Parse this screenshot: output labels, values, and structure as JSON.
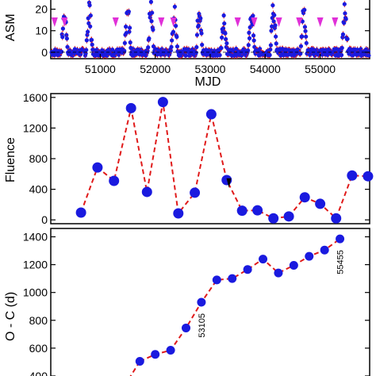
{
  "colors": {
    "marker": "#1a1adf",
    "line": "#e01a1a",
    "triangle": "#e030d8",
    "arrow": "#000000"
  },
  "chart_data": [
    {
      "type": "line",
      "ylabel": "ASM",
      "xlabel": "MJD",
      "xlim": [
        50100,
        55900
      ],
      "ylim": [
        -3,
        25
      ],
      "xticks": [
        51000,
        52000,
        53000,
        54000,
        55000
      ],
      "yticks": [
        0,
        10,
        20
      ],
      "ytick_labels": [
        "0",
        "10",
        "20"
      ],
      "outburst_peaks_mjd": [
        50350,
        50800,
        51500,
        51920,
        52350,
        52800,
        53250,
        53750,
        54150,
        54700,
        55450
      ],
      "outburst_peak_values": [
        25,
        25,
        25,
        25,
        25,
        25,
        18,
        25,
        25,
        25,
        25
      ],
      "triangle_markers_mjd": [
        50170,
        50350,
        51280,
        52110,
        52330,
        53500,
        53800,
        54250,
        54620,
        55000,
        55270
      ]
    },
    {
      "type": "line",
      "ylabel": "Fluence",
      "ylim": [
        -50,
        1650
      ],
      "yticks": [
        0,
        400,
        800,
        1200,
        1600
      ],
      "ytick_labels": [
        "0",
        "400",
        "800",
        "1200",
        "1600"
      ],
      "xlim": [
        50100,
        55900
      ],
      "points": [
        {
          "x": 50650,
          "y": 95
        },
        {
          "x": 50950,
          "y": 685
        },
        {
          "x": 51250,
          "y": 510
        },
        {
          "x": 51560,
          "y": 1460
        },
        {
          "x": 51850,
          "y": 365
        },
        {
          "x": 52140,
          "y": 1540
        },
        {
          "x": 52420,
          "y": 85
        },
        {
          "x": 52720,
          "y": 355
        },
        {
          "x": 53020,
          "y": 1380
        },
        {
          "x": 53300,
          "y": 520
        },
        {
          "x": 53580,
          "y": 120
        },
        {
          "x": 53860,
          "y": 125
        },
        {
          "x": 54150,
          "y": 20
        },
        {
          "x": 54430,
          "y": 45
        },
        {
          "x": 54720,
          "y": 295
        },
        {
          "x": 55000,
          "y": 210
        },
        {
          "x": 55290,
          "y": 20
        },
        {
          "x": 55580,
          "y": 580
        },
        {
          "x": 55870,
          "y": 570
        }
      ],
      "arrow_at_x": 53340
    },
    {
      "type": "line",
      "ylabel": "O - C   (d)",
      "ylim": [
        320,
        1460
      ],
      "yticks": [
        400,
        600,
        800,
        1000,
        1200,
        1400
      ],
      "ytick_labels": [
        "400",
        "600",
        "800",
        "1000",
        "1200",
        "1400"
      ],
      "xlim": [
        50100,
        55900
      ],
      "points": [
        {
          "x": 51720,
          "y": 505
        },
        {
          "x": 52000,
          "y": 555
        },
        {
          "x": 52280,
          "y": 585
        },
        {
          "x": 52560,
          "y": 745
        },
        {
          "x": 52840,
          "y": 930
        },
        {
          "x": 53120,
          "y": 1090
        },
        {
          "x": 53400,
          "y": 1100
        },
        {
          "x": 53680,
          "y": 1165
        },
        {
          "x": 53960,
          "y": 1240
        },
        {
          "x": 54240,
          "y": 1140
        },
        {
          "x": 54520,
          "y": 1195
        },
        {
          "x": 54800,
          "y": 1260
        },
        {
          "x": 55080,
          "y": 1305
        },
        {
          "x": 55360,
          "y": 1385
        }
      ],
      "annotations": [
        {
          "text": "53105",
          "x": 52840
        },
        {
          "text": "55455",
          "x": 55360
        }
      ]
    }
  ]
}
